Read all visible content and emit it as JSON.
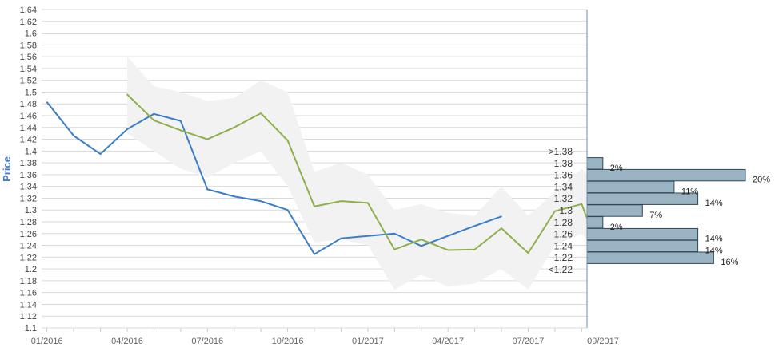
{
  "chart_data": {
    "type": "line",
    "ylabel": "Price",
    "ylim": [
      1.1,
      1.64
    ],
    "y_ticks": [
      "1.1",
      "1.12",
      "1.14",
      "1.16",
      "1.18",
      "1.2",
      "1.22",
      "1.24",
      "1.26",
      "1.28",
      "1.3",
      "1.32",
      "1.34",
      "1.36",
      "1.38",
      "1.4",
      "1.42",
      "1.44",
      "1.46",
      "1.48",
      "1.5",
      "1.52",
      "1.54",
      "1.56",
      "1.58",
      "1.6",
      "1.62",
      "1.64"
    ],
    "x_tick_labels": [
      "01/2016",
      "04/2016",
      "07/2016",
      "10/2016",
      "01/2017",
      "04/2017",
      "07/2017",
      "09/2017"
    ],
    "x_tick_label_values": [
      0,
      3,
      6,
      9,
      12,
      15,
      18,
      20.2
    ],
    "xlim": [
      -0.2,
      20.2
    ],
    "grid": true,
    "colors": {
      "actual": "#3a7dc9",
      "forecast": "#8db04c",
      "band": "#f2f2f2",
      "histogram_bar": "#9ab4c4",
      "axis_label": "#4a7cc4",
      "gridline": "#d9d9d9",
      "axis": "#6b8fae"
    },
    "series": [
      {
        "key": "actual",
        "x": [
          0,
          1,
          2,
          3,
          4,
          5,
          6,
          7,
          8,
          9,
          10,
          11,
          12,
          13,
          14,
          15,
          16,
          17
        ],
        "values": [
          1.483,
          1.426,
          1.395,
          1.437,
          1.463,
          1.451,
          1.335,
          1.323,
          1.315,
          1.3,
          1.225,
          1.252,
          1.256,
          1.26,
          1.239,
          1.256,
          1.273,
          1.289
        ]
      },
      {
        "key": "forecast",
        "x": [
          3,
          4,
          5,
          6,
          7,
          8,
          9,
          10,
          11,
          12,
          13,
          14,
          15,
          16,
          17,
          18,
          19,
          20,
          20.2
        ],
        "values": [
          1.496,
          1.452,
          1.435,
          1.42,
          1.44,
          1.464,
          1.418,
          1.306,
          1.315,
          1.312,
          1.233,
          1.25,
          1.232,
          1.233,
          1.269,
          1.227,
          1.298,
          1.31,
          1.286
        ]
      }
    ],
    "band": {
      "x": [
        3,
        4,
        5,
        6,
        7,
        8,
        9,
        10,
        11,
        12,
        13,
        14,
        15,
        16,
        17,
        18,
        19,
        20,
        20.2
      ],
      "upper": [
        1.56,
        1.51,
        1.5,
        1.485,
        1.49,
        1.52,
        1.5,
        1.365,
        1.38,
        1.36,
        1.3,
        1.31,
        1.295,
        1.29,
        1.34,
        1.29,
        1.33,
        1.37,
        1.36
      ],
      "lower": [
        1.43,
        1.4,
        1.37,
        1.355,
        1.38,
        1.4,
        1.34,
        1.245,
        1.25,
        1.24,
        1.165,
        1.19,
        1.17,
        1.175,
        1.2,
        1.165,
        1.24,
        1.26,
        1.25
      ]
    },
    "histogram": {
      "bins": [
        {
          "label": ">1.38",
          "pct": null,
          "pct_label": ""
        },
        {
          "label": "1.38",
          "pct": 2,
          "pct_label": "2%"
        },
        {
          "label": "1.36",
          "pct": 20,
          "pct_label": "20%"
        },
        {
          "label": "1.34",
          "pct": 11,
          "pct_label": "11%"
        },
        {
          "label": "1.32",
          "pct": 14,
          "pct_label": "14%"
        },
        {
          "label": "1.3",
          "pct": 7,
          "pct_label": "7%"
        },
        {
          "label": "1.28",
          "pct": 2,
          "pct_label": "2%"
        },
        {
          "label": "1.26",
          "pct": 14,
          "pct_label": "14%"
        },
        {
          "label": "1.24",
          "pct": 14,
          "pct_label": "14%"
        },
        {
          "label": "1.22",
          "pct": 16,
          "pct_label": "16%"
        },
        {
          "label": "<1.22",
          "pct": null,
          "pct_label": ""
        }
      ],
      "max_pct": 20
    }
  }
}
